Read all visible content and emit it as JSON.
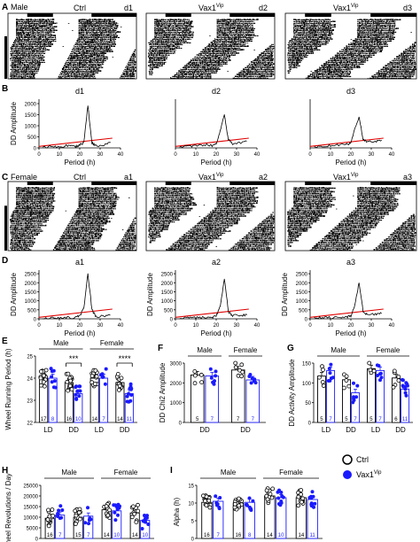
{
  "panels": {
    "A": {
      "letter": "A",
      "sex": "Male",
      "items": [
        {
          "title": "Ctrl",
          "tag": "d1"
        },
        {
          "title": "Vax1",
          "sup": "Vip",
          "tag": "d2"
        },
        {
          "title": "Vax1",
          "sup": "Vip",
          "tag": "d3"
        }
      ]
    },
    "B": {
      "letter": "B",
      "titles": [
        "d1",
        "d2",
        "d3"
      ],
      "ylabel": "DD Amplitude",
      "xlabel": "Period (h)",
      "yticks": [
        "0",
        "500",
        "1000",
        "1500",
        "2000"
      ],
      "xticks": [
        "0",
        "10",
        "20",
        "30",
        "40"
      ]
    },
    "C": {
      "letter": "C",
      "sex": "Female",
      "items": [
        {
          "title": "Ctrl",
          "tag": "a1"
        },
        {
          "title": "Vax1",
          "sup": "Vip",
          "tag": "a2"
        },
        {
          "title": "Vax1",
          "sup": "Vip",
          "tag": "a3"
        }
      ]
    },
    "D": {
      "letter": "D",
      "titles": [
        "a1",
        "a2",
        "a3"
      ],
      "ylabel": "DD Amplitude",
      "xlabel": "Period (h)",
      "yticks": [
        "0",
        "500",
        "1000",
        "1500",
        "2000",
        "2500"
      ],
      "xticks": [
        "0",
        "10",
        "20",
        "30",
        "40"
      ]
    },
    "E": {
      "letter": "E",
      "ylabel": "Wheel Running Period (h)",
      "yticks": [
        "22",
        "23",
        "24",
        "25"
      ],
      "groups": [
        "Male",
        "Female"
      ],
      "xcats": [
        "LD",
        "DD",
        "LD",
        "DD"
      ],
      "stars": [
        "***",
        "****"
      ],
      "n": [
        [
          "17",
          "8"
        ],
        [
          "16",
          "10"
        ],
        [
          "14",
          "7"
        ],
        [
          "14",
          "11"
        ]
      ]
    },
    "F": {
      "letter": "F",
      "ylabel": "DD Chi2 Amplitude",
      "yticks": [
        "0",
        "1000",
        "2000",
        "3000"
      ],
      "groups": [
        "Male",
        "Female"
      ],
      "xcats": [
        "DD",
        "DD"
      ],
      "n": [
        [
          "5",
          "7"
        ],
        [
          "7",
          "7"
        ]
      ]
    },
    "G": {
      "letter": "G",
      "ylabel": "DD Activity Amplitude",
      "yticks": [
        "0",
        "50",
        "100",
        "150"
      ],
      "groups": [
        "Male",
        "Female"
      ],
      "xcats": [
        "LD",
        "DD",
        "LD",
        "DD"
      ],
      "n": [
        [
          "5",
          "7"
        ],
        [
          "5",
          "7"
        ],
        [
          "5",
          "7"
        ],
        [
          "6",
          "11"
        ]
      ]
    },
    "H": {
      "letter": "H",
      "ylabel": "Wheel Revolutions / Day",
      "yticks": [
        "0",
        "5000",
        "10000",
        "15000",
        "20000",
        "25000"
      ],
      "groups": [
        "Male",
        "Female"
      ],
      "xcats": [
        "LD",
        "DD",
        "LD",
        "DD"
      ],
      "n": [
        [
          "16",
          "7"
        ],
        [
          "15",
          "7"
        ],
        [
          "14",
          "10"
        ],
        [
          "14",
          "10"
        ]
      ]
    },
    "I": {
      "letter": "I",
      "ylabel": "Alpha (h)",
      "yticks": [
        "0",
        "5",
        "10",
        "15"
      ],
      "groups": [
        "Male",
        "Female"
      ],
      "xcats": [
        "LD",
        "DD",
        "LD",
        "DD"
      ],
      "n": [
        [
          "16",
          "7"
        ],
        [
          "16",
          "8"
        ],
        [
          "14",
          "10"
        ],
        [
          "14",
          "11"
        ]
      ]
    }
  },
  "legend": {
    "ctrl": "Ctrl",
    "vax": "Vax1",
    "vax_sup": "Vip"
  },
  "colors": {
    "ctrl": "#000000",
    "vax": "#1a1aff",
    "fit": "#e00000"
  },
  "chart_data": [
    {
      "type": "line",
      "panel": "B-d1",
      "x": [
        2,
        6,
        10,
        14,
        18,
        20,
        22,
        24,
        26,
        28,
        32,
        35
      ],
      "y": [
        20,
        60,
        20,
        110,
        60,
        120,
        260,
        1900,
        220,
        90,
        110,
        250
      ],
      "ylim": [
        0,
        2200
      ],
      "xlim": [
        0,
        40
      ]
    },
    {
      "type": "line",
      "panel": "B-d2",
      "x": [
        2,
        6,
        10,
        14,
        18,
        20,
        22,
        24,
        26,
        28,
        32,
        35
      ],
      "y": [
        30,
        80,
        70,
        150,
        110,
        160,
        800,
        1500,
        350,
        200,
        250,
        300
      ],
      "ylim": [
        0,
        2200
      ],
      "xlim": [
        0,
        40
      ]
    },
    {
      "type": "line",
      "panel": "B-d3",
      "x": [
        2,
        6,
        10,
        14,
        18,
        20,
        22,
        24,
        26,
        28,
        32,
        35
      ],
      "y": [
        40,
        90,
        110,
        140,
        180,
        220,
        900,
        1400,
        380,
        260,
        290,
        340
      ],
      "ylim": [
        0,
        2200
      ],
      "xlim": [
        0,
        40
      ]
    },
    {
      "type": "line",
      "panel": "D-a1",
      "x": [
        2,
        6,
        10,
        14,
        18,
        20,
        22,
        24,
        26,
        28,
        32,
        35
      ],
      "y": [
        10,
        40,
        60,
        80,
        60,
        150,
        600,
        2500,
        500,
        100,
        180,
        200
      ],
      "ylim": [
        0,
        2700
      ],
      "xlim": [
        0,
        40
      ]
    },
    {
      "type": "line",
      "panel": "D-a2",
      "x": [
        2,
        6,
        10,
        14,
        18,
        20,
        22,
        24,
        26,
        28,
        32,
        35
      ],
      "y": [
        20,
        60,
        50,
        90,
        80,
        160,
        700,
        2200,
        400,
        180,
        200,
        230
      ],
      "ylim": [
        0,
        2700
      ],
      "xlim": [
        0,
        40
      ]
    },
    {
      "type": "line",
      "panel": "D-a3",
      "x": [
        2,
        6,
        10,
        14,
        18,
        20,
        22,
        24,
        26,
        28,
        32,
        35
      ],
      "y": [
        20,
        80,
        60,
        100,
        110,
        170,
        800,
        2000,
        420,
        200,
        260,
        300
      ],
      "ylim": [
        0,
        2700
      ],
      "xlim": [
        0,
        40
      ]
    },
    {
      "type": "bar",
      "panel": "E",
      "categories": [
        "LD",
        "DD",
        "LD",
        "DD"
      ],
      "series": [
        {
          "name": "Ctrl",
          "values": [
            24.0,
            23.8,
            24.0,
            23.8
          ]
        },
        {
          "name": "Vax1Vip",
          "values": [
            24.0,
            23.3,
            24.0,
            23.3
          ]
        }
      ],
      "ylim": [
        22,
        25
      ]
    },
    {
      "type": "bar",
      "panel": "F",
      "categories": [
        "DD",
        "DD"
      ],
      "series": [
        {
          "name": "Ctrl",
          "values": [
            2400,
            2650
          ]
        },
        {
          "name": "Vax1Vip",
          "values": [
            2350,
            2150
          ]
        }
      ],
      "ylim": [
        0,
        3000
      ]
    },
    {
      "type": "bar",
      "panel": "G",
      "categories": [
        "LD",
        "DD",
        "LD",
        "DD"
      ],
      "series": [
        {
          "name": "Ctrl",
          "values": [
            125,
            115,
            145,
            120
          ]
        },
        {
          "name": "Vax1Vip",
          "values": [
            140,
            80,
            140,
            90
          ]
        }
      ],
      "ylim": [
        0,
        160
      ]
    },
    {
      "type": "bar",
      "panel": "H",
      "categories": [
        "LD",
        "DD",
        "LD",
        "DD"
      ],
      "series": [
        {
          "name": "Ctrl",
          "values": [
            9500,
            10000,
            13500,
            12000
          ]
        },
        {
          "name": "Vax1Vip",
          "values": [
            11000,
            10500,
            13000,
            8500
          ]
        }
      ],
      "ylim": [
        0,
        25000
      ]
    },
    {
      "type": "bar",
      "panel": "I",
      "categories": [
        "LD",
        "DD",
        "LD",
        "DD"
      ],
      "series": [
        {
          "name": "Ctrl",
          "values": [
            10.2,
            10.0,
            12.0,
            11.5
          ]
        },
        {
          "name": "Vax1Vip",
          "values": [
            10.5,
            10.2,
            11.5,
            11.0
          ]
        }
      ],
      "ylim": [
        0,
        15
      ]
    }
  ]
}
